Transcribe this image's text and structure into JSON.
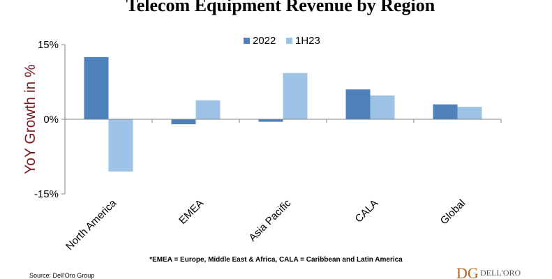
{
  "chart_data": {
    "type": "bar",
    "title": "Telecom Equipment Revenue by Region",
    "ylabel": "YoY Growth in %",
    "xlabel": "",
    "ylim": [
      -15,
      15
    ],
    "yticks": [
      "15%",
      "0%",
      "-15%"
    ],
    "legend_position": "top-center",
    "categories": [
      "North America",
      "EMEA",
      "Asia Pacific",
      "CALA",
      "Global"
    ],
    "series": [
      {
        "name": "2022",
        "color": "#4f81bd",
        "values": [
          12.5,
          -1,
          -0.5,
          6,
          3
        ]
      },
      {
        "name": "1H23",
        "color": "#9dc3e6",
        "values": [
          -10.5,
          3.8,
          9.3,
          4.8,
          2.5
        ]
      }
    ],
    "footnote": "*EMEA = Europe, Middle East & Africa, CALA = Caribbean and Latin America",
    "source": "Source: Dell'Oro Group"
  },
  "logo": {
    "letters": "DG",
    "text": "DELL'ORO"
  }
}
